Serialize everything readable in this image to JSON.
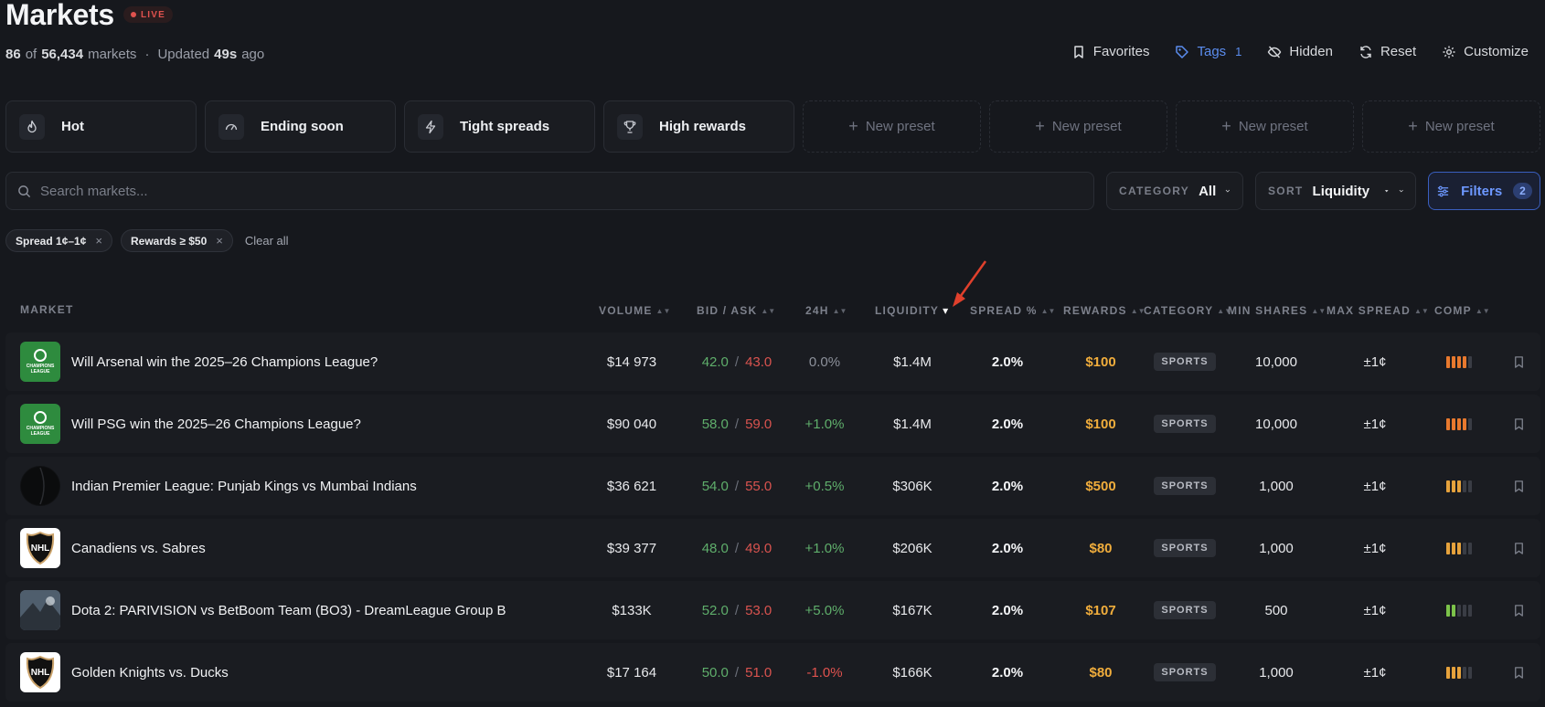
{
  "header": {
    "title": "Markets",
    "live_label": "LIVE",
    "count_shown": "86",
    "count_of": "of",
    "count_total": "56,434",
    "count_suffix": "markets",
    "dot": "·",
    "updated_prefix": "Updated",
    "updated_value": "49s",
    "updated_suffix": "ago"
  },
  "actions": {
    "favorites": "Favorites",
    "tags": "Tags",
    "tags_count": "1",
    "hidden": "Hidden",
    "reset": "Reset",
    "customize": "Customize"
  },
  "presets": [
    {
      "label": "Hot",
      "icon": "flame-icon"
    },
    {
      "label": "Ending soon",
      "icon": "gauge-icon"
    },
    {
      "label": "Tight spreads",
      "icon": "lightning-icon"
    },
    {
      "label": "High rewards",
      "icon": "trophy-icon"
    },
    {
      "label": "New preset",
      "icon": "plus-icon"
    },
    {
      "label": "New preset",
      "icon": "plus-icon"
    },
    {
      "label": "New preset",
      "icon": "plus-icon"
    },
    {
      "label": "New preset",
      "icon": "plus-icon"
    }
  ],
  "search": {
    "placeholder": "Search markets..."
  },
  "category_select": {
    "label": "CATEGORY",
    "value": "All"
  },
  "sort_select": {
    "label": "SORT",
    "value": "Liquidity"
  },
  "filters": {
    "label": "Filters",
    "count": "2"
  },
  "chips": {
    "items": [
      {
        "label": "Spread 1¢–1¢",
        "close": "×"
      },
      {
        "label": "Rewards ≥ $50",
        "close": "×"
      }
    ],
    "clear_all": "Clear all"
  },
  "table": {
    "columns": [
      "MARKET",
      "VOLUME",
      "BID / ASK",
      "24H",
      "LIQUIDITY",
      "SPREAD %",
      "REWARDS",
      "CATEGORY",
      "MIN SHARES",
      "MAX SPREAD",
      "COMP"
    ],
    "sort_glyph": "▲▼",
    "active_sort_glyph": "▾",
    "bid_ask_sep": "/",
    "rows": [
      {
        "market": "Will Arsenal win the 2025–26 Champions League?",
        "thumb": "ucl",
        "thumb_text": "CHAMPIONS LEAGUE",
        "volume": "$14 973",
        "bid": "42.0",
        "ask": "43.0",
        "change": "0.0%",
        "change_dir": "neu",
        "liquidity": "$1.4M",
        "spread": "2.0%",
        "rewards": "$100",
        "category": "SPORTS",
        "min_shares": "10,000",
        "max_spread": "±1¢",
        "comp_level": 4,
        "comp_color": "#e8792e"
      },
      {
        "market": "Will PSG win the 2025–26 Champions League?",
        "thumb": "ucl",
        "thumb_text": "CHAMPIONS LEAGUE",
        "volume": "$90 040",
        "bid": "58.0",
        "ask": "59.0",
        "change": "+1.0%",
        "change_dir": "pos",
        "liquidity": "$1.4M",
        "spread": "2.0%",
        "rewards": "$100",
        "category": "SPORTS",
        "min_shares": "10,000",
        "max_spread": "±1¢",
        "comp_level": 4,
        "comp_color": "#e8792e"
      },
      {
        "market": "Indian Premier League: Punjab Kings vs Mumbai Indians",
        "thumb": "cricket",
        "thumb_text": "",
        "volume": "$36 621",
        "bid": "54.0",
        "ask": "55.0",
        "change": "+0.5%",
        "change_dir": "pos",
        "liquidity": "$306K",
        "spread": "2.0%",
        "rewards": "$500",
        "category": "SPORTS",
        "min_shares": "1,000",
        "max_spread": "±1¢",
        "comp_level": 3,
        "comp_color": "#e6a23c"
      },
      {
        "market": "Canadiens vs. Sabres",
        "thumb": "nhl",
        "thumb_text": "NHL",
        "volume": "$39 377",
        "bid": "48.0",
        "ask": "49.0",
        "change": "+1.0%",
        "change_dir": "pos",
        "liquidity": "$206K",
        "spread": "2.0%",
        "rewards": "$80",
        "category": "SPORTS",
        "min_shares": "1,000",
        "max_spread": "±1¢",
        "comp_level": 3,
        "comp_color": "#e6a23c"
      },
      {
        "market": "Dota 2: PARIVISION vs BetBoom Team (BO3) - DreamLeague Group B",
        "thumb": "dota",
        "thumb_text": "",
        "volume": "$133K",
        "bid": "52.0",
        "ask": "53.0",
        "change": "+5.0%",
        "change_dir": "pos",
        "liquidity": "$167K",
        "spread": "2.0%",
        "rewards": "$107",
        "category": "SPORTS",
        "min_shares": "500",
        "max_spread": "±1¢",
        "comp_level": 2,
        "comp_color": "#7cc34a"
      },
      {
        "market": "Golden Knights vs. Ducks",
        "thumb": "nhl",
        "thumb_text": "NHL",
        "volume": "$17 164",
        "bid": "50.0",
        "ask": "51.0",
        "change": "-1.0%",
        "change_dir": "neg",
        "liquidity": "$166K",
        "spread": "2.0%",
        "rewards": "$80",
        "category": "SPORTS",
        "min_shares": "1,000",
        "max_spread": "±1¢",
        "comp_level": 3,
        "comp_color": "#e6a23c"
      }
    ]
  },
  "annotation": {
    "color": "#e0402c"
  }
}
